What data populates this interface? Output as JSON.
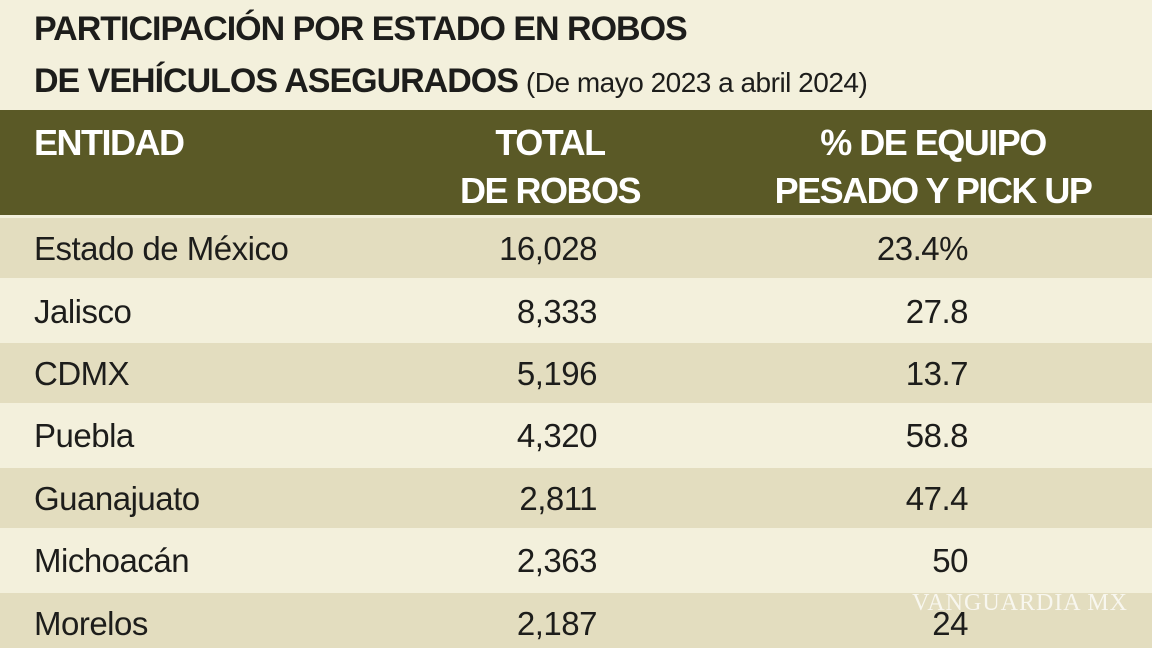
{
  "title": {
    "line1": "PARTICIPACIÓN POR ESTADO EN ROBOS",
    "line2": "DE VEHÍCULOS ASEGURADOS",
    "subtitle": "(De mayo 2023 a abril 2024)"
  },
  "table": {
    "header": [
      [
        "ENTIDAD"
      ],
      [
        "TOTAL",
        "DE ROBOS"
      ],
      [
        "% DE EQUIPO",
        "PESADO Y PICK UP"
      ]
    ],
    "rows": [
      [
        "Estado de México",
        "16,028",
        "23.4%"
      ],
      [
        "Jalisco",
        "8,333",
        "27.8"
      ],
      [
        "CDMX",
        "5,196",
        "13.7"
      ],
      [
        "Puebla",
        "4,320",
        "58.8"
      ],
      [
        "Guanajuato",
        "2,811",
        "47.4"
      ],
      [
        "Michoacán",
        "2,363",
        "50"
      ],
      [
        "Morelos",
        "2,187",
        "24"
      ]
    ]
  },
  "watermark": "VANGUARDIA MX"
}
